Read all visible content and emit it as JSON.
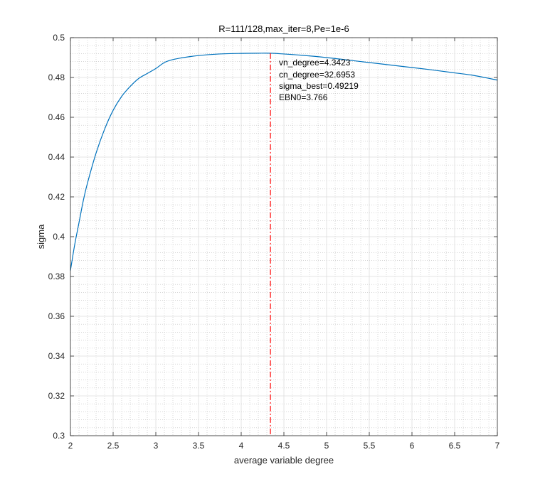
{
  "chart_data": {
    "type": "line",
    "title": "R=111/128,max_iter=8,Pe=1e-6",
    "xlabel": "average variable degree",
    "ylabel": "sigma",
    "xlim": [
      2,
      7
    ],
    "ylim": [
      0.3,
      0.5
    ],
    "xticks": [
      2,
      2.5,
      3,
      3.5,
      4,
      4.5,
      5,
      5.5,
      6,
      6.5,
      7
    ],
    "xtick_labels": [
      "2",
      "2.5",
      "3",
      "3.5",
      "4",
      "4.5",
      "5",
      "5.5",
      "6",
      "6.5",
      "7"
    ],
    "yticks": [
      0.3,
      0.32,
      0.34,
      0.36,
      0.38,
      0.4,
      0.42,
      0.44,
      0.46,
      0.48,
      0.5
    ],
    "ytick_labels": [
      "0.3",
      "0.32",
      "0.34",
      "0.36",
      "0.38",
      "0.4",
      "0.42",
      "0.44",
      "0.46",
      "0.48",
      "0.5"
    ],
    "grid": true,
    "minor_grid": true,
    "series": [
      {
        "color": "#0072bd",
        "x": [
          2.0,
          2.05,
          2.1,
          2.15,
          2.2,
          2.3,
          2.4,
          2.5,
          2.6,
          2.7,
          2.8,
          2.9,
          3.0,
          3.1,
          3.2,
          3.4,
          3.6,
          3.8,
          4.0,
          4.2,
          4.34,
          4.5,
          4.7,
          5.0,
          5.3,
          5.6,
          5.9,
          6.2,
          6.5,
          6.7,
          7.0
        ],
        "y": [
          0.383,
          0.396,
          0.407,
          0.418,
          0.427,
          0.442,
          0.454,
          0.4635,
          0.4705,
          0.4755,
          0.4795,
          0.482,
          0.4845,
          0.4875,
          0.489,
          0.4905,
          0.4914,
          0.4919,
          0.4921,
          0.4922,
          0.49219,
          0.4918,
          0.4912,
          0.49,
          0.4885,
          0.487,
          0.4855,
          0.484,
          0.4823,
          0.4812,
          0.4787
        ]
      }
    ],
    "vline": {
      "x": 4.3423,
      "color": "#ff0000",
      "style": "dash-dot"
    },
    "annotations": [
      "vn_degree=4.3423",
      "cn_degree=32.6953",
      "sigma_best=0.49219",
      "EBN0=3.766"
    ]
  }
}
